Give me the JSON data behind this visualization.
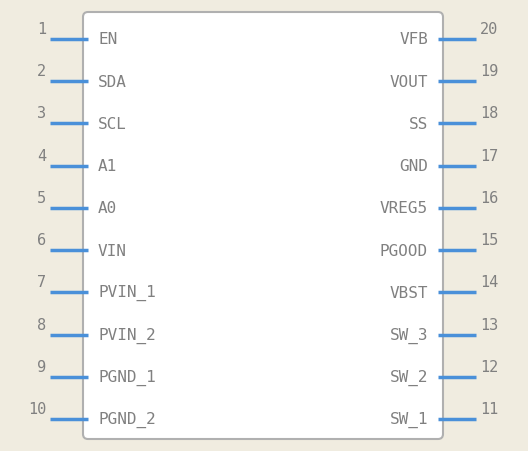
{
  "bg_color": "#f0ece0",
  "box_color": "#b0b0b0",
  "box_fill": "#ffffff",
  "pin_color": "#4a90d9",
  "text_color": "#808080",
  "left_pins": [
    {
      "num": 1,
      "name": "EN"
    },
    {
      "num": 2,
      "name": "SDA"
    },
    {
      "num": 3,
      "name": "SCL"
    },
    {
      "num": 4,
      "name": "A1"
    },
    {
      "num": 5,
      "name": "A0"
    },
    {
      "num": 6,
      "name": "VIN"
    },
    {
      "num": 7,
      "name": "PVIN_1"
    },
    {
      "num": 8,
      "name": "PVIN_2"
    },
    {
      "num": 9,
      "name": "PGND_1"
    },
    {
      "num": 10,
      "name": "PGND_2"
    }
  ],
  "right_pins": [
    {
      "num": 20,
      "name": "VFB"
    },
    {
      "num": 19,
      "name": "VOUT"
    },
    {
      "num": 18,
      "name": "SS"
    },
    {
      "num": 17,
      "name": "GND"
    },
    {
      "num": 16,
      "name": "VREG5"
    },
    {
      "num": 15,
      "name": "PGOOD"
    },
    {
      "num": 14,
      "name": "VBST"
    },
    {
      "num": 13,
      "name": "SW_3"
    },
    {
      "num": 12,
      "name": "SW_2"
    },
    {
      "num": 11,
      "name": "SW_1"
    }
  ],
  "underscore_names": [
    "PVIN_1",
    "PVIN_2",
    "PGND_1",
    "PGND_2",
    "SW_3",
    "SW_2",
    "SW_1"
  ],
  "figsize": [
    5.28,
    4.52
  ],
  "dpi": 100
}
